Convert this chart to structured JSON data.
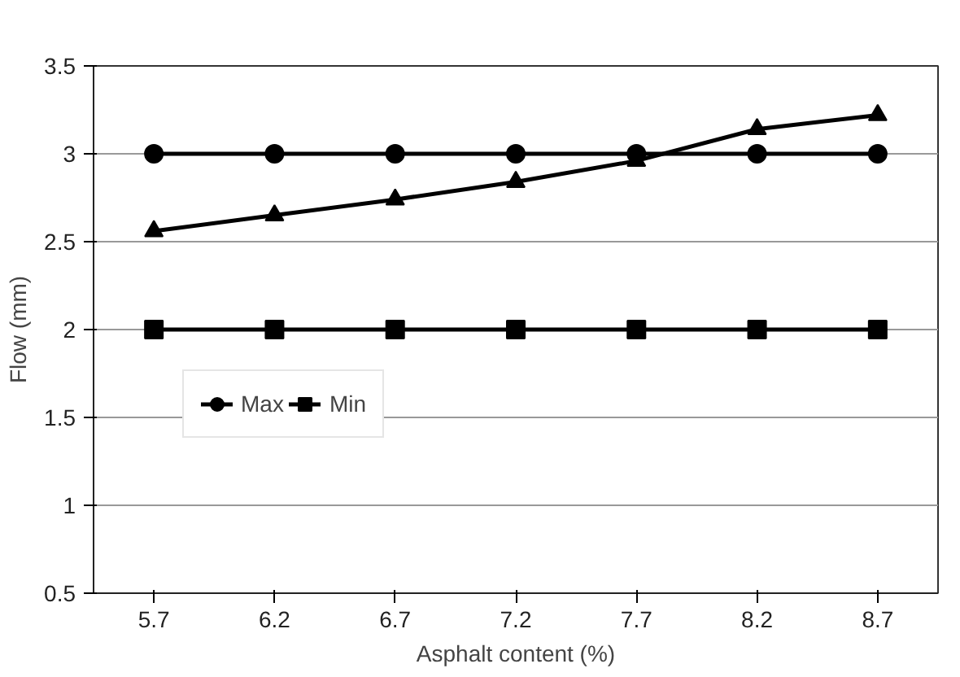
{
  "chart_data": {
    "type": "line",
    "xlabel": "Asphalt content (%)",
    "ylabel": "Flow (mm)",
    "categories": [
      "5.7",
      "6.2",
      "6.7",
      "7.2",
      "7.7",
      "8.2",
      "8.7"
    ],
    "series": [
      {
        "name": "Max",
        "color": "#000000",
        "marker": "circle",
        "values": [
          3,
          3,
          3,
          3,
          3,
          3,
          3
        ]
      },
      {
        "name": "Min",
        "color": "#000000",
        "marker": "square",
        "values": [
          2,
          2,
          2,
          2,
          2,
          2,
          2
        ]
      },
      {
        "color": "#000000",
        "marker": "triangle",
        "values": [
          2.56,
          2.65,
          2.74,
          2.84,
          2.96,
          3.14,
          3.22
        ]
      }
    ],
    "ylim": [
      0.5,
      3.5
    ],
    "yticks": [
      0.5,
      1,
      1.5,
      2,
      2.5,
      3,
      3.5
    ],
    "grid": "y",
    "legend": "left",
    "line_style": "solid"
  }
}
